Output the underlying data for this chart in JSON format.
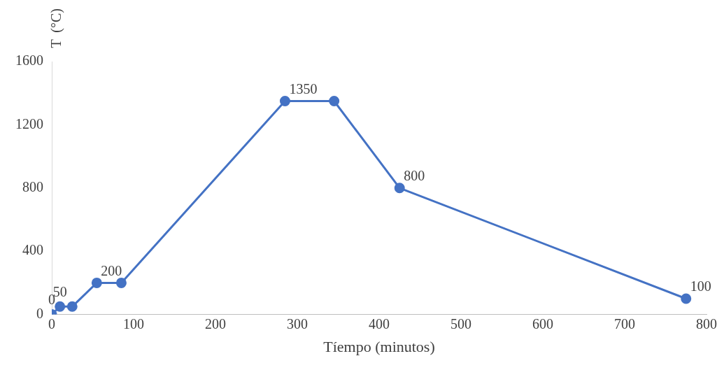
{
  "chart_data": {
    "type": "line",
    "xlabel": "Tíempo (minutos)",
    "ylabel": "T  (°C)",
    "x": [
      0,
      10,
      25,
      55,
      85,
      285,
      345,
      425,
      775
    ],
    "series": [
      {
        "color": "#4472c4",
        "values": [
          0,
          50,
          50,
          200,
          200,
          1350,
          1350,
          800,
          100
        ],
        "value_labels": [
          "0",
          "50",
          null,
          "200",
          null,
          "1350",
          null,
          "800",
          "100"
        ]
      }
    ],
    "xlim": [
      0,
      800
    ],
    "xticks": [
      0,
      100,
      200,
      300,
      400,
      500,
      600,
      700,
      800
    ],
    "ylim": [
      0,
      1600
    ],
    "yticks": [
      0,
      400,
      800,
      1200,
      1600
    ],
    "grid": false,
    "legend": false,
    "marker": "circle",
    "line_style": "solid"
  }
}
